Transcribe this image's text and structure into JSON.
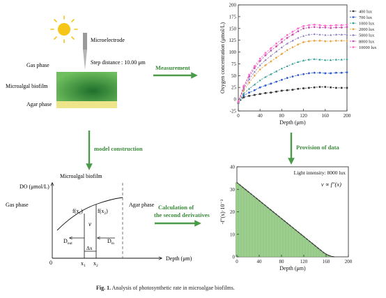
{
  "labels": {
    "microelectrode": "Microelectrode",
    "step_distance": "Step distance : 10.00 μm",
    "gas_phase": "Gas phase",
    "microalgal_biofilm": "Microalgal biofilm",
    "agar_phase": "Agar phase"
  },
  "arrows": {
    "measurement": "Measurement",
    "model_construction": "model construction",
    "provision_of_data": "Provision of data",
    "calculation_line1": "Calculation of",
    "calculation_line2": "the second derivatives"
  },
  "model": {
    "title": "Microalgal biofilm",
    "y_axis": "DO (μmol/L)",
    "gas_phase": "Gas phase",
    "agar_phase": "Agar phase",
    "fx1": "f(x",
    "fx1_sub": "1",
    "fx2": "f(x",
    "fx2_sub": "2",
    "close_paren": ")",
    "v": "v",
    "dout": "D",
    "dout_sub": "out",
    "din": "D",
    "din_sub": "in",
    "delta_x": "Δx",
    "x1": "x",
    "x1_sub": "1",
    "x2": "x",
    "x2_sub": "2",
    "origin": "0",
    "x_axis": "Depth (μm)"
  },
  "caption": {
    "bold": "Fig. 1.",
    "text": " Analysis of photosynthetic rate in microalgae biofilms."
  },
  "chart_data": [
    {
      "type": "line",
      "xlabel": "Depth (μm)",
      "ylabel": "Oxygen concentration (μmol/L)",
      "xlim": [
        0,
        200
      ],
      "ylim": [
        -25,
        200
      ],
      "xticks": [
        0,
        40,
        80,
        120,
        160,
        200
      ],
      "yticks": [
        -25,
        0,
        25,
        50,
        75,
        100,
        125,
        150,
        175,
        200
      ],
      "legend_position": "top-right",
      "x": [
        0,
        10,
        20,
        30,
        40,
        50,
        60,
        70,
        80,
        90,
        100,
        110,
        120,
        130,
        140,
        150,
        160,
        170,
        180,
        190,
        200
      ],
      "series": [
        {
          "name": "400 lux",
          "color": "#333333",
          "marker": "square",
          "values": [
            -8,
            4,
            7,
            9,
            11,
            13,
            14,
            16,
            18,
            19,
            20,
            22,
            23,
            24,
            25,
            26,
            26,
            25,
            24,
            24,
            24
          ]
        },
        {
          "name": "700 lux",
          "color": "#2f5bd0",
          "marker": "circle",
          "values": [
            -8,
            8,
            14,
            19,
            25,
            29,
            33,
            37,
            41,
            45,
            48,
            51,
            53,
            55,
            56,
            56,
            55,
            55,
            56,
            56,
            57
          ]
        },
        {
          "name": "1000 lux",
          "color": "#2a9d8f",
          "marker": "triangle",
          "values": [
            -8,
            12,
            22,
            31,
            40,
            47,
            53,
            59,
            65,
            70,
            75,
            79,
            82,
            84,
            85,
            84,
            83,
            83,
            84,
            84,
            85
          ]
        },
        {
          "name": "2000 lux",
          "color": "#e6a23c",
          "marker": "diamond",
          "values": [
            -7,
            18,
            35,
            50,
            63,
            72,
            80,
            88,
            96,
            104,
            110,
            116,
            121,
            123,
            124,
            124,
            123,
            123,
            124,
            124,
            124
          ]
        },
        {
          "name": "5000 lux",
          "color": "#8e7cc3",
          "marker": "triangle",
          "values": [
            -6,
            22,
            42,
            58,
            72,
            83,
            92,
            101,
            110,
            118,
            124,
            130,
            134,
            137,
            138,
            137,
            136,
            136,
            137,
            137,
            137
          ]
        },
        {
          "name": "8000 lux",
          "color": "#c94fb0",
          "marker": "circle",
          "values": [
            -6,
            26,
            48,
            66,
            81,
            93,
            103,
            112,
            121,
            130,
            137,
            144,
            150,
            152,
            153,
            152,
            152,
            151,
            152,
            152,
            153
          ]
        },
        {
          "name": "10000 lux",
          "color": "#ff66cc",
          "marker": "circle",
          "values": [
            -5,
            28,
            52,
            70,
            86,
            98,
            108,
            118,
            127,
            136,
            143,
            150,
            155,
            157,
            158,
            157,
            156,
            156,
            157,
            157,
            158
          ]
        }
      ]
    },
    {
      "type": "bar",
      "xlabel": "Depth (μm)",
      "ylabel": "-f″(x)·10⁻³",
      "xlim": [
        0,
        200
      ],
      "ylim": [
        0,
        40
      ],
      "xticks": [
        0,
        40,
        80,
        120,
        160,
        200
      ],
      "yticks": [
        0,
        10,
        20,
        30,
        40
      ],
      "annotation": "Light intensity: 8000 lux",
      "formula": "v ∝ f″(x)",
      "bar_color": "#9bd08c",
      "line_color": "#222222",
      "x": [
        0,
        5,
        10,
        15,
        20,
        25,
        30,
        35,
        40,
        45,
        50,
        55,
        60,
        65,
        70,
        75,
        80,
        85,
        90,
        95,
        100,
        105,
        110,
        115,
        120,
        125,
        130,
        135,
        140,
        145,
        150,
        155,
        160,
        165,
        170,
        175
      ],
      "values": [
        33,
        32,
        31,
        30,
        29,
        28,
        27,
        26,
        25,
        24,
        23,
        22,
        21,
        20,
        19,
        18,
        17,
        16,
        15,
        14,
        13,
        12,
        11,
        10,
        9,
        8,
        7,
        6,
        5,
        4,
        3,
        2,
        1.2,
        0.6,
        0.2,
        0
      ]
    }
  ]
}
